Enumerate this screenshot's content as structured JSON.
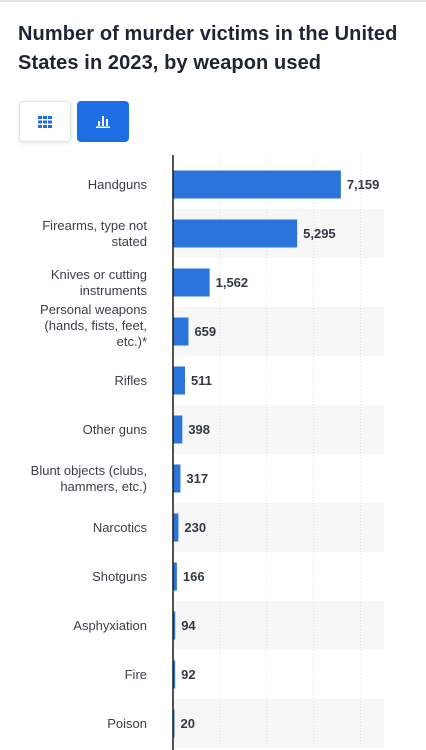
{
  "title": "Number of murder victims in the United States in 2023, by weapon used",
  "view_toggle": {
    "table_icon": "table-grid-icon",
    "chart_icon": "bar-chart-icon",
    "active": "chart"
  },
  "colors": {
    "bar": "#2a74dc",
    "accent": "#1e6de3",
    "band": "#f7f7f7",
    "axis": "#1a1a1a",
    "grid": "#dddddd"
  },
  "chart_data": {
    "type": "bar",
    "orientation": "horizontal",
    "categories": [
      "Handguns",
      "Firearms, type not stated",
      "Knives or cutting instruments",
      "Personal weapons (hands, fists, feet, etc.)*",
      "Rifles",
      "Other guns",
      "Blunt objects (clubs, hammers, etc.)",
      "Narcotics",
      "Shotguns",
      "Asphyxiation",
      "Fire",
      "Poison"
    ],
    "category_lines": [
      [
        "Handguns"
      ],
      [
        "Firearms, type not",
        "stated"
      ],
      [
        "Knives or cutting",
        "instruments"
      ],
      [
        "Personal weapons",
        "(hands, fists, feet,",
        "etc.)*"
      ],
      [
        "Rifles"
      ],
      [
        "Other guns"
      ],
      [
        "Blunt objects (clubs,",
        "hammers, etc.)"
      ],
      [
        "Narcotics"
      ],
      [
        "Shotguns"
      ],
      [
        "Asphyxiation"
      ],
      [
        "Fire"
      ],
      [
        "Poison"
      ]
    ],
    "values": [
      7159,
      5295,
      1562,
      659,
      511,
      398,
      317,
      230,
      166,
      94,
      92,
      20
    ],
    "value_labels": [
      "7,159",
      "5,295",
      "1,562",
      "659",
      "511",
      "398",
      "317",
      "230",
      "166",
      "94",
      "92",
      "20"
    ],
    "xlim": [
      0,
      9000
    ],
    "grid": true,
    "legend": "none"
  }
}
